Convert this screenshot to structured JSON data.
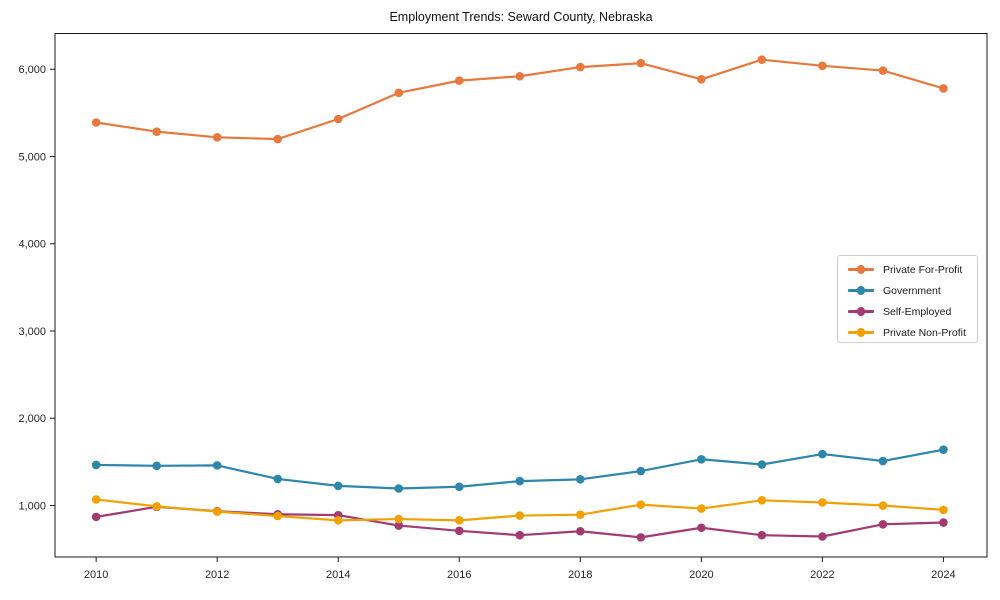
{
  "title": "Employment Trends: Seward County, Nebraska",
  "chart_data": {
    "type": "line",
    "title": "Employment Trends: Seward County, Nebraska",
    "xlabel": "",
    "ylabel": "",
    "grid": false,
    "legend_position": "center right",
    "x": [
      2010,
      2011,
      2012,
      2013,
      2014,
      2015,
      2016,
      2017,
      2018,
      2019,
      2020,
      2021,
      2022,
      2023,
      2024
    ],
    "series": [
      {
        "name": "Private For-Profit",
        "color": "#E8793E",
        "values": [
          5390,
          5285,
          5220,
          5200,
          5430,
          5730,
          5870,
          5920,
          6025,
          6070,
          5885,
          6110,
          6040,
          5985,
          5780
        ]
      },
      {
        "name": "Government",
        "color": "#2E86AB",
        "values": [
          1465,
          1455,
          1460,
          1305,
          1225,
          1195,
          1215,
          1280,
          1300,
          1395,
          1530,
          1470,
          1590,
          1510,
          1640
        ]
      },
      {
        "name": "Self-Employed",
        "color": "#A23B72",
        "values": [
          870,
          985,
          935,
          900,
          890,
          770,
          710,
          660,
          705,
          635,
          745,
          660,
          645,
          785,
          805
        ]
      },
      {
        "name": "Private Non-Profit",
        "color": "#F2A104",
        "values": [
          1070,
          990,
          930,
          880,
          830,
          845,
          830,
          885,
          895,
          1010,
          965,
          1060,
          1035,
          1000,
          950
        ]
      }
    ],
    "xlim": [
      2009.32,
      2024.72
    ],
    "ylim": [
      410,
      6410
    ],
    "xticks": [
      2010,
      2012,
      2014,
      2016,
      2018,
      2020,
      2022,
      2024
    ],
    "xtick_labels": [
      "2010",
      "2012",
      "2014",
      "2016",
      "2018",
      "2020",
      "2022",
      "2024"
    ],
    "yticks": [
      1000,
      2000,
      3000,
      4000,
      5000,
      6000
    ],
    "ytick_labels": [
      "1,000",
      "2,000",
      "3,000",
      "4,000",
      "5,000",
      "6,000"
    ]
  }
}
